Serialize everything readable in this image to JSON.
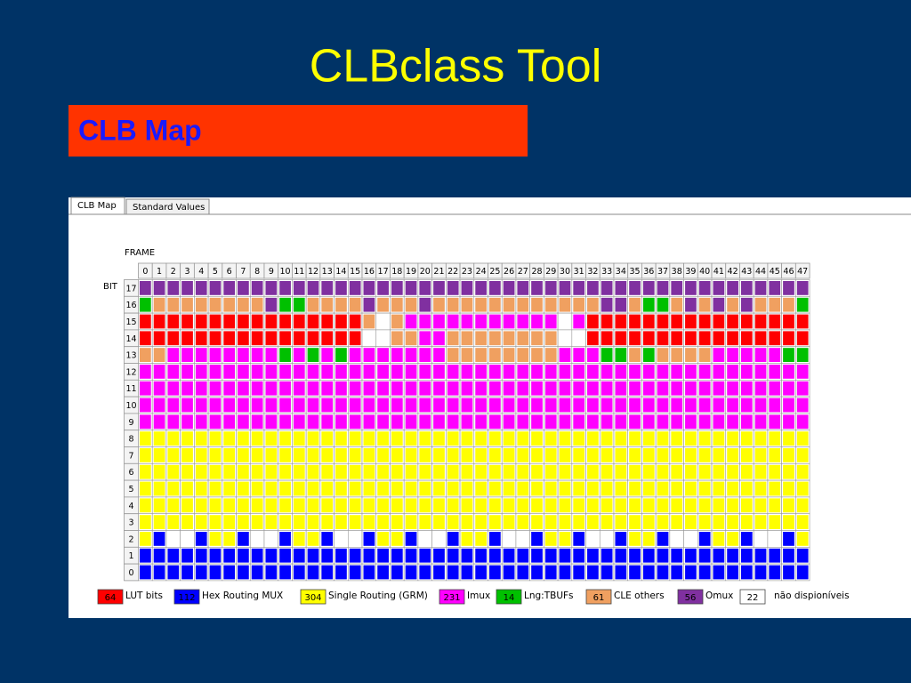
{
  "title": "CLBclass Tool",
  "section": "CLB Map",
  "tabs": [
    "CLB Map",
    "Standard Values"
  ],
  "frame_label": "FRAME",
  "bit_label": "BIT",
  "frames": [
    0,
    1,
    2,
    3,
    4,
    5,
    6,
    7,
    8,
    9,
    10,
    11,
    12,
    13,
    14,
    15,
    16,
    17,
    18,
    19,
    20,
    21,
    22,
    23,
    24,
    25,
    26,
    27,
    28,
    29,
    30,
    31,
    32,
    33,
    34,
    35,
    36,
    37,
    38,
    39,
    40,
    41,
    42,
    43,
    44,
    45,
    46,
    47
  ],
  "bits": [
    17,
    16,
    15,
    14,
    13,
    12,
    11,
    10,
    9,
    8,
    7,
    6,
    5,
    4,
    3,
    2,
    1,
    0
  ],
  "map": [
    "666666666666666666666666666666666666666666666666",
    "455555555644555565556555555555555665445656565554",
    "000000000000000057533333333333730000000000000000",
    "000000000000000077553355555555770000000000000000",
    "553333333343434333333355555555333445455553333344",
    "333333333333333333333333333333333333333333333333",
    "333333333333333333333333333333333333333333333333",
    "333333333333333333333333333333333333333333333333",
    "333333333333333333333333333333333333333333333333",
    "222222222222222222222222222222222222222222222222",
    "222222222222222222222222222222222222222222222222",
    "222222222222222222222222222222222222222222222222",
    "222222222222222222222222222222222222222222222222",
    "222222222222222222222222222222222222222222222222",
    "222222222222222222222222222222222222222222222222",
    "217712217712217712217712217712217712217712217712",
    "111111111111111111111111111111111111111111111111",
    "111111111111111111111111111111111111111111111111"
  ],
  "legend": [
    {
      "count": 64,
      "label": "LUT bits",
      "color": "#ff0000"
    },
    {
      "count": 112,
      "label": "Hex Routing MUX",
      "color": "#0000ff"
    },
    {
      "count": 304,
      "label": "Single Routing (GRM)",
      "color": "#ffff00"
    },
    {
      "count": 231,
      "label": "Imux",
      "color": "#ff00ff"
    },
    {
      "count": 14,
      "label": "Lng:TBUFs",
      "color": "#00c000"
    },
    {
      "count": 61,
      "label": "CLE others",
      "color": "#f0a060"
    },
    {
      "count": 56,
      "label": "Omux",
      "color": "#8030a0"
    },
    {
      "count": 22,
      "label": "não dispioníveis",
      "color": "#ffffff"
    }
  ]
}
